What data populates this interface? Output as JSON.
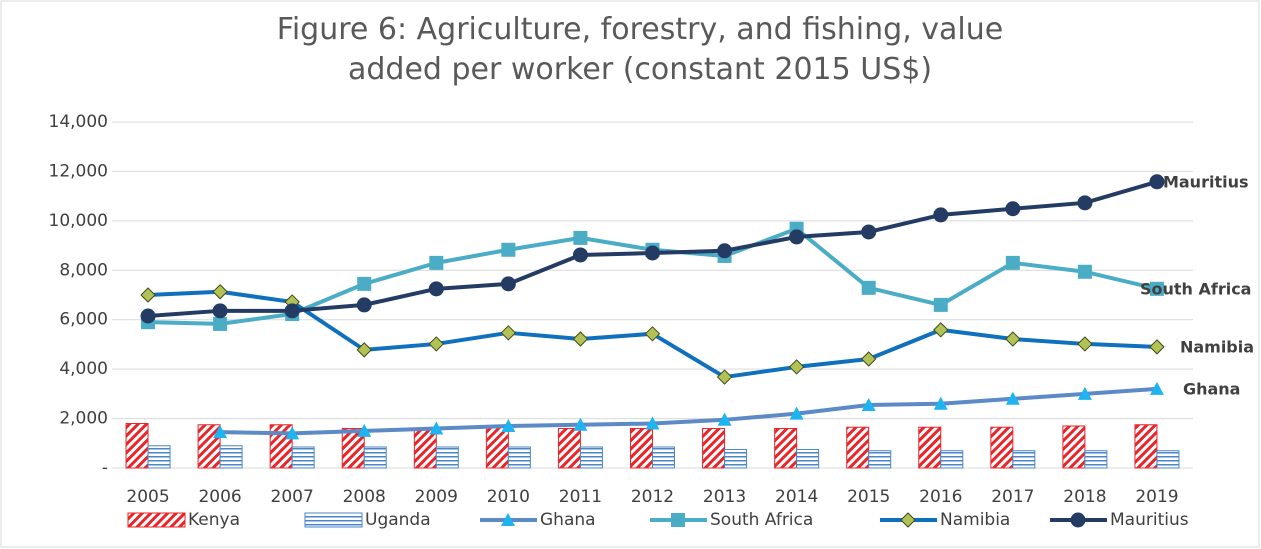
{
  "chart_data": {
    "type": "combo",
    "title": "Figure 6: Agriculture, forestry, and fishing, value added per worker (constant 2015 US$)",
    "categories": [
      "2005",
      "2006",
      "2007",
      "2008",
      "2009",
      "2010",
      "2011",
      "2012",
      "2013",
      "2014",
      "2015",
      "2016",
      "2017",
      "2018",
      "2019"
    ],
    "series": [
      {
        "name": "Kenya",
        "type": "bar",
        "color": "#e8262a",
        "pattern": "diagonal",
        "values": [
          1800,
          1750,
          1750,
          1600,
          1600,
          1650,
          1600,
          1600,
          1600,
          1600,
          1650,
          1650,
          1650,
          1700,
          1750
        ]
      },
      {
        "name": "Uganda",
        "type": "bar",
        "color": "#4a86c8",
        "pattern": "horizontal",
        "values": [
          900,
          900,
          850,
          850,
          850,
          850,
          850,
          850,
          750,
          750,
          700,
          700,
          700,
          700,
          700
        ]
      },
      {
        "name": "Ghana",
        "type": "line",
        "color": "#5b8ac6",
        "marker": "triangle",
        "marker_color": "#1eb4ef",
        "values": [
          null,
          1450,
          1400,
          1500,
          1600,
          1700,
          1750,
          1800,
          1950,
          2200,
          2550,
          2600,
          2800,
          3000,
          3200
        ]
      },
      {
        "name": "South Africa",
        "type": "line",
        "color": "#4bacc6",
        "marker": "square",
        "marker_color": "#4bacc6",
        "values": [
          5900,
          5830,
          6230,
          7450,
          8300,
          8830,
          9310,
          8830,
          8580,
          9680,
          7290,
          6600,
          8300,
          7940,
          7250
        ]
      },
      {
        "name": "Namibia",
        "type": "line",
        "color": "#0f70bd",
        "marker": "diamond",
        "marker_color": "#b3c255",
        "values": [
          7000,
          7130,
          6720,
          4780,
          5020,
          5470,
          5220,
          5430,
          3680,
          4090,
          4410,
          5590,
          5220,
          5020,
          4900
        ]
      },
      {
        "name": "Mauritius",
        "type": "line",
        "color": "#243c64",
        "marker": "circle",
        "marker_color": "#243c64",
        "values": [
          6150,
          6360,
          6360,
          6600,
          7250,
          7450,
          8620,
          8700,
          8790,
          9350,
          9550,
          10240,
          10490,
          10730,
          11580
        ]
      }
    ],
    "ylim": [
      0,
      14000
    ],
    "yticks": [
      {
        "value": 0,
        "label": "-"
      },
      {
        "value": 2000,
        "label": "2,000"
      },
      {
        "value": 4000,
        "label": "4,000"
      },
      {
        "value": 6000,
        "label": "6,000"
      },
      {
        "value": 8000,
        "label": "8,000"
      },
      {
        "value": 10000,
        "label": "10,000"
      },
      {
        "value": 12000,
        "label": "12,000"
      },
      {
        "value": 14000,
        "label": "14,000"
      }
    ],
    "grid": true,
    "legend": "bottom"
  }
}
